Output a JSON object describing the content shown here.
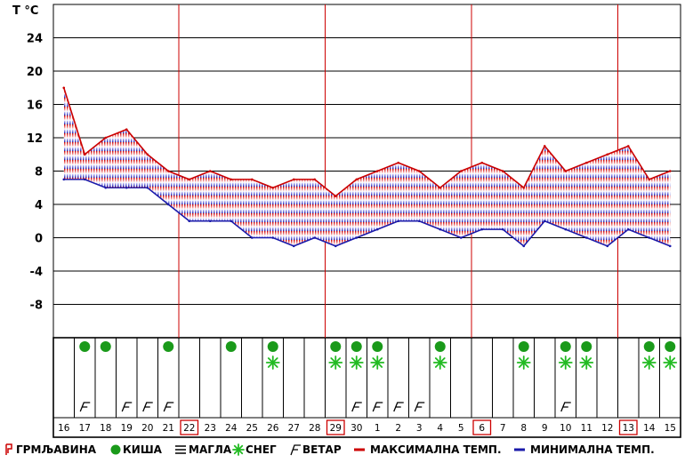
{
  "chart_data": {
    "type": "line",
    "unit_label": "T °C",
    "y_ticks": [
      24,
      20,
      16,
      12,
      8,
      4,
      0,
      -4,
      -8
    ],
    "ylim": [
      -12,
      28
    ],
    "days": [
      "16",
      "17",
      "18",
      "19",
      "20",
      "21",
      "22",
      "23",
      "24",
      "25",
      "26",
      "27",
      "28",
      "29",
      "30",
      "1",
      "2",
      "3",
      "4",
      "5",
      "6",
      "7",
      "8",
      "9",
      "10",
      "11",
      "12",
      "13",
      "14",
      "15"
    ],
    "highlighted_days": [
      "22",
      "29",
      "6",
      "13"
    ],
    "series": [
      {
        "name": "МАКСИМАЛНА ТЕМП.",
        "color": "#cc0000",
        "values": [
          18,
          10,
          12,
          13,
          10,
          8,
          7,
          8,
          7,
          7,
          6,
          7,
          7,
          5,
          7,
          8,
          9,
          8,
          6,
          8,
          9,
          8,
          6,
          11,
          8,
          9,
          10,
          11,
          7,
          8
        ]
      },
      {
        "name": "МИНИМАЛНА ТЕМП.",
        "color": "#1a1aaa",
        "values": [
          7,
          7,
          6,
          6,
          6,
          4,
          2,
          2,
          2,
          0,
          0,
          -1,
          0,
          -1,
          0,
          1,
          2,
          2,
          1,
          0,
          1,
          1,
          -1,
          2,
          1,
          0,
          -1,
          1,
          0,
          -1
        ]
      }
    ],
    "weather_rows": {
      "rain_days": [
        "17",
        "18",
        "21",
        "24",
        "26",
        "29",
        "30",
        "1",
        "4",
        "8",
        "10",
        "11",
        "14",
        "15"
      ],
      "snow_days": [
        "26",
        "29",
        "30",
        "1",
        "4",
        "8",
        "10",
        "11",
        "14",
        "15"
      ],
      "wind_days": [
        "17",
        "19",
        "20",
        "21",
        "30",
        "1",
        "2",
        "3",
        "10"
      ]
    },
    "legend": [
      {
        "key": "thunder",
        "label": "ГРМЉАВИНА"
      },
      {
        "key": "rain",
        "label": "КИША"
      },
      {
        "key": "fog",
        "label": "МАГЛА"
      },
      {
        "key": "snow",
        "label": "СНЕГ"
      },
      {
        "key": "wind",
        "label": "ВЕТАР"
      },
      {
        "key": "max",
        "label": "МАКСИМАЛНА ТЕМП."
      },
      {
        "key": "min",
        "label": "МИНИМАЛНА ТЕМП."
      }
    ],
    "colors": {
      "max": "#cc0000",
      "min": "#1a1aaa",
      "rain": "#1a9a1a",
      "snow": "#22bb22",
      "grid": "#000000",
      "highlight": "#cc0000"
    }
  }
}
